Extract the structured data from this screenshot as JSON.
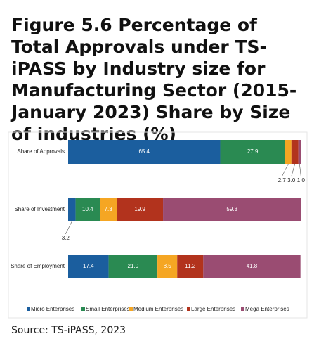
{
  "chart_data": {
    "type": "stacked-barh",
    "title": "Figure 5.6 Percentage of Total Approvals under TS-iPASS by Industry size for Manufacturing Sector (2015-January 2023) Share by Size of industries (%)",
    "categories": [
      "Share of Approvals",
      "Share of Investment",
      "Share of Employment"
    ],
    "series": [
      {
        "name": "Micro Enterprises",
        "color": "#1b5e9e",
        "values": [
          65.4,
          3.2,
          17.4
        ],
        "value_labels": [
          "65.4",
          "3.2",
          "17.4"
        ]
      },
      {
        "name": "Small Enterprises",
        "color": "#2a8a52",
        "values": [
          27.9,
          10.4,
          21.0
        ],
        "value_labels": [
          "27.9",
          "10.4",
          "21.0"
        ]
      },
      {
        "name": "Medium Enterprises",
        "color": "#f5a623",
        "values": [
          2.7,
          7.3,
          8.5
        ],
        "value_labels": [
          "2.7",
          "7.3",
          "8.5"
        ]
      },
      {
        "name": "Large Enterprises",
        "color": "#b2331d",
        "values": [
          3.0,
          19.9,
          11.2
        ],
        "value_labels": [
          "3.0",
          "19.9",
          "11.2"
        ]
      },
      {
        "name": "Mega Enterprises",
        "color": "#9a4c72",
        "values": [
          1.0,
          59.3,
          41.8
        ],
        "value_labels": [
          "1.0",
          "59.3",
          "41.8"
        ]
      }
    ],
    "xlim": [
      0,
      100
    ],
    "legend": "bottom",
    "source": "Source: TS-iPASS, 2023"
  }
}
